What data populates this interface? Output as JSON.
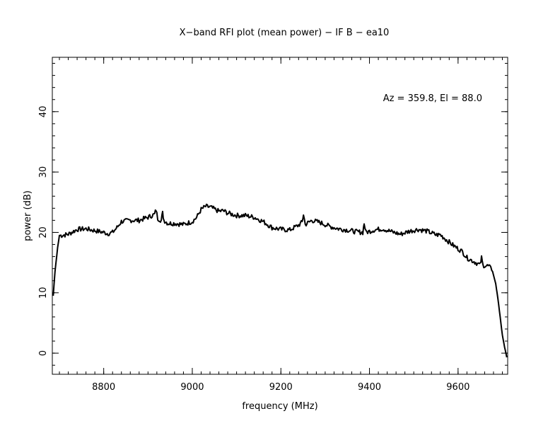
{
  "chart_data": {
    "type": "line",
    "title": "X−band RFI plot (mean power) − IF B − ea10",
    "xlabel": "frequency (MHz)",
    "ylabel": "power (dB)",
    "annotation": "Az = 359.8, El = 88.0",
    "xlim": [
      8684,
      9712
    ],
    "ylim": [
      -3.5,
      49
    ],
    "x_ticks": [
      8800,
      9000,
      9200,
      9400,
      9600
    ],
    "x_tick_labels": [
      "8800",
      "9000",
      "9200",
      "9400",
      "9600"
    ],
    "y_ticks": [
      0,
      10,
      20,
      30,
      40
    ],
    "y_tick_labels": [
      "0",
      "10",
      "20",
      "30",
      "40"
    ],
    "x_minor_step": 20,
    "y_minor_step": 2,
    "grid": false,
    "series": [
      {
        "color": "#000000",
        "x": [
          8686,
          8690,
          8696,
          8700,
          8705,
          8720,
          8740,
          8760,
          8780,
          8800,
          8810,
          8820,
          8830,
          8840,
          8860,
          8880,
          8900,
          8915,
          8918,
          8922,
          8930,
          8933,
          8936,
          8945,
          8960,
          8980,
          9000,
          9010,
          9020,
          9030,
          9040,
          9060,
          9070,
          9080,
          9100,
          9120,
          9140,
          9160,
          9180,
          9200,
          9220,
          9240,
          9248,
          9251,
          9255,
          9270,
          9290,
          9310,
          9330,
          9350,
          9370,
          9385,
          9388,
          9392,
          9410,
          9430,
          9450,
          9470,
          9490,
          9510,
          9530,
          9550,
          9560,
          9570,
          9590,
          9610,
          9620,
          9630,
          9640,
          9650,
          9653,
          9656,
          9660,
          9670,
          9678,
          9685,
          9690,
          9695,
          9700,
          9705,
          9708,
          9710
        ],
        "y": [
          9.5,
          13.5,
          17.5,
          19.5,
          19.5,
          19.7,
          20.5,
          20.6,
          20.3,
          20.0,
          19.8,
          20.0,
          20.8,
          21.8,
          22.0,
          22.0,
          22.5,
          23.0,
          23.8,
          22.3,
          22.0,
          23.2,
          22.0,
          21.5,
          21.5,
          21.3,
          21.8,
          22.5,
          23.8,
          24.3,
          24.2,
          23.5,
          23.6,
          23.2,
          22.8,
          22.8,
          22.5,
          21.8,
          20.8,
          20.5,
          20.4,
          21.2,
          21.7,
          23.0,
          21.3,
          22.0,
          21.6,
          21.0,
          20.6,
          20.4,
          20.1,
          20.0,
          21.5,
          20.0,
          20.4,
          20.6,
          20.1,
          19.7,
          20.2,
          20.5,
          20.2,
          19.6,
          19.6,
          19.0,
          17.8,
          16.8,
          15.8,
          15.4,
          15.0,
          14.6,
          15.8,
          14.6,
          14.5,
          14.4,
          13.5,
          11.5,
          9.0,
          6.0,
          3.0,
          1.0,
          0.0,
          -0.7
        ]
      }
    ]
  }
}
